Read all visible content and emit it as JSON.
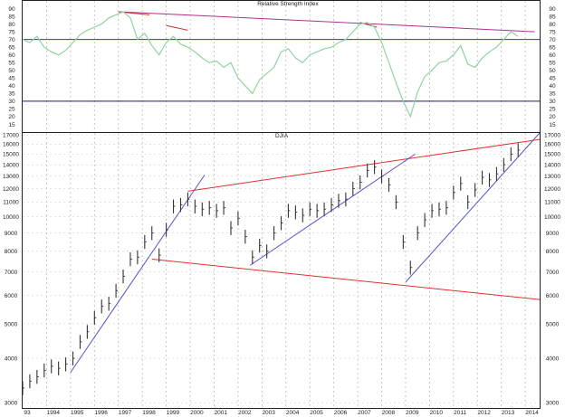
{
  "chart_data": [
    {
      "type": "line",
      "title": "Relative Strength Index",
      "ylim": [
        10,
        95
      ],
      "y_ticks": [
        90,
        85,
        80,
        75,
        70,
        65,
        60,
        55,
        50,
        45,
        40,
        35,
        30,
        25,
        20,
        15
      ],
      "reference_lines": [
        70,
        30
      ],
      "grid": true,
      "series": [
        {
          "color": "#8fd4a0",
          "x": [
            1993.0,
            1993.3,
            1993.6,
            1993.9,
            1994.2,
            1994.5,
            1994.8,
            1995.1,
            1995.4,
            1995.7,
            1996.0,
            1996.3,
            1996.6,
            1996.9,
            1997.2,
            1997.5,
            1997.8,
            1998.1,
            1998.4,
            1998.7,
            1999.0,
            1999.3,
            1999.6,
            1999.9,
            2000.2,
            2000.5,
            2000.8,
            2001.1,
            2001.4,
            2001.7,
            2002.0,
            2002.3,
            2002.6,
            2002.9,
            2003.2,
            2003.5,
            2003.8,
            2004.1,
            2004.4,
            2004.7,
            2005.0,
            2005.3,
            2005.6,
            2005.9,
            2006.2,
            2006.5,
            2006.8,
            2007.1,
            2007.4,
            2007.7,
            2008.0,
            2008.3,
            2008.6,
            2008.9,
            2009.2,
            2009.5,
            2009.8,
            2010.1,
            2010.4,
            2010.7,
            2011.0,
            2011.3,
            2011.6,
            2011.9,
            2012.2,
            2012.5,
            2012.8,
            2013.1,
            2013.4,
            2013.7
          ],
          "values": [
            70,
            68,
            72,
            65,
            62,
            60,
            63,
            68,
            73,
            76,
            78,
            80,
            84,
            86,
            88,
            84,
            70,
            74,
            66,
            60,
            68,
            72,
            67,
            65,
            62,
            58,
            55,
            56,
            52,
            55,
            45,
            40,
            35,
            44,
            48,
            52,
            62,
            64,
            58,
            55,
            60,
            62,
            64,
            65,
            68,
            70,
            75,
            80,
            81,
            78,
            68,
            55,
            42,
            30,
            20,
            36,
            46,
            50,
            55,
            56,
            60,
            66,
            54,
            52,
            58,
            62,
            65,
            70,
            75,
            72
          ]
        }
      ],
      "divergence_lines": [
        {
          "color": "#b0308a",
          "x": [
            1997.0,
            2014.4
          ],
          "y": [
            88,
            75
          ]
        },
        {
          "color": "#d03030",
          "x": [
            1997.0,
            1998.3
          ],
          "y": [
            88,
            86
          ]
        },
        {
          "color": "#d03030",
          "x": [
            1999.0,
            1999.9
          ],
          "y": [
            79,
            76
          ]
        },
        {
          "color": "#d03030",
          "x": [
            2007.1,
            2007.8
          ],
          "y": [
            81,
            78
          ]
        }
      ]
    },
    {
      "type": "bar",
      "title": "DJIA",
      "scale": "log",
      "ylim": [
        2900,
        17200
      ],
      "y_ticks": [
        17000,
        16000,
        15000,
        14000,
        13000,
        12000,
        11000,
        10000,
        9000,
        8000,
        7000,
        6000,
        5000,
        4000,
        3000
      ],
      "x_ticks": [
        "93",
        "1994",
        "1995",
        "1996",
        "1997",
        "1998",
        "1999",
        "2000",
        "2001",
        "2002",
        "2003",
        "2004",
        "2005",
        "2006",
        "2007",
        "2008",
        "2009",
        "2010",
        "2011",
        "2012",
        "2013",
        "2014"
      ],
      "grid": true,
      "series": [
        {
          "color": "#333333",
          "x": [
            1993.0,
            1993.3,
            1993.6,
            1993.9,
            1994.2,
            1994.5,
            1994.8,
            1995.1,
            1995.4,
            1995.7,
            1996.0,
            1996.3,
            1996.6,
            1996.9,
            1997.2,
            1997.5,
            1997.8,
            1998.1,
            1998.4,
            1998.7,
            1999.0,
            1999.3,
            1999.6,
            1999.9,
            2000.2,
            2000.5,
            2000.8,
            2001.1,
            2001.4,
            2001.7,
            2002.0,
            2002.3,
            2002.6,
            2002.9,
            2003.2,
            2003.5,
            2003.8,
            2004.1,
            2004.4,
            2004.7,
            2005.0,
            2005.3,
            2005.6,
            2005.9,
            2006.2,
            2006.5,
            2006.8,
            2007.1,
            2007.4,
            2007.7,
            2008.0,
            2008.3,
            2008.6,
            2008.9,
            2009.2,
            2009.5,
            2009.8,
            2010.1,
            2010.4,
            2010.7,
            2011.0,
            2011.3,
            2011.6,
            2011.9,
            2012.2,
            2012.5,
            2012.8,
            2013.1,
            2013.4,
            2013.7
          ],
          "values": [
            3300,
            3450,
            3550,
            3700,
            3800,
            3750,
            3850,
            4000,
            4450,
            4750,
            5200,
            5600,
            5700,
            6200,
            6800,
            7600,
            7700,
            8500,
            9000,
            7800,
            9200,
            10700,
            10800,
            11200,
            10700,
            10500,
            10600,
            10400,
            10600,
            9300,
            9900,
            8800,
            7700,
            8300,
            8000,
            9000,
            9600,
            10400,
            10300,
            10100,
            10500,
            10400,
            10500,
            10800,
            11100,
            11200,
            12000,
            12500,
            13500,
            13800,
            13000,
            12300,
            11000,
            8500,
            7200,
            9000,
            9800,
            10400,
            10500,
            10600,
            11700,
            12400,
            11000,
            11900,
            12900,
            12700,
            13200,
            14000,
            15000,
            15400
          ]
        }
      ],
      "trend_lines": [
        {
          "color": "#5555cc",
          "x": [
            1995.0,
            2000.6
          ],
          "y": [
            3650,
            13100
          ]
        },
        {
          "color": "#5555cc",
          "x": [
            2002.5,
            2009.4
          ],
          "y": [
            7300,
            15000
          ]
        },
        {
          "color": "#5555cc",
          "x": [
            2009.0,
            2014.6
          ],
          "y": [
            6550,
            17200
          ]
        },
        {
          "color": "#e03030",
          "x": [
            1999.9,
            2014.6
          ],
          "y": [
            11800,
            16500
          ]
        },
        {
          "color": "#e03030",
          "x": [
            1998.4,
            2014.6
          ],
          "y": [
            7600,
            5850
          ]
        }
      ]
    }
  ]
}
